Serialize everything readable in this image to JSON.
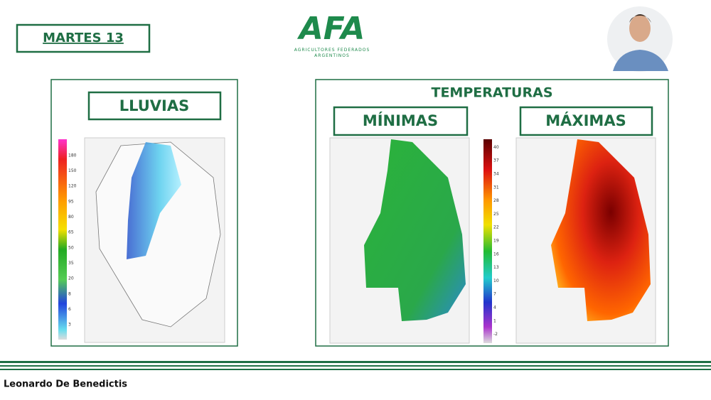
{
  "header": {
    "date": "MARTES 13",
    "logo": "AFA",
    "logo_subtitle": [
      "AGRICULTORES FEDERADOS",
      "ARGENTINOS"
    ]
  },
  "rain_panel": {
    "title": "LLUVIAS",
    "legend": [
      180,
      150,
      120,
      95,
      80,
      65,
      50,
      35,
      20,
      8,
      6,
      3
    ]
  },
  "temp_panel": {
    "title": "TEMPERATURAS",
    "min_title": "MÍNIMAS",
    "max_title": "MÁXIMAS",
    "legend": [
      40,
      37,
      34,
      31,
      28,
      25,
      22,
      19,
      16,
      13,
      10,
      7,
      4,
      1,
      -2
    ]
  },
  "footer": {
    "speaker": "Leonardo De Benedictis"
  }
}
